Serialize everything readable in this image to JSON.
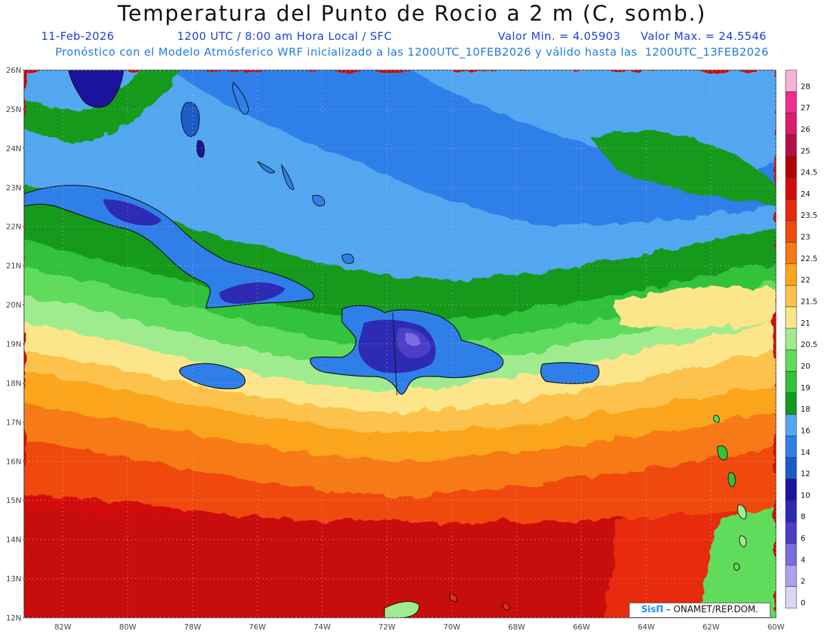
{
  "header": {
    "title": "Temperatura del Punto de Rocio a 2 m (C, somb.)",
    "date": "11-Feb-2026",
    "time_info": "1200 UTC / 8:00 am Hora Local / SFC",
    "min_label": "Valor Min. = 4.05903",
    "max_label": "Valor Max. = 24.5546",
    "model_info": "Pronóstico con el Modelo Atmósferico WRF inicializado a las 1200UTC_10FEB2026 y válido hasta las  1200UTC_13FEB2026"
  },
  "map": {
    "lat_labels": [
      "26N",
      "25N",
      "24N",
      "23N",
      "22N",
      "21N",
      "20N",
      "19N",
      "18N",
      "17N",
      "16N",
      "15N",
      "14N",
      "13N",
      "12N"
    ],
    "lon_labels": [
      "82W",
      "80W",
      "78W",
      "76W",
      "74W",
      "72W",
      "70W",
      "68W",
      "66W",
      "64W",
      "62W",
      "60W"
    ],
    "lat_range": [
      12,
      26
    ],
    "lon_range": [
      -83.2,
      -60
    ],
    "grid": "dotted"
  },
  "colorbar": {
    "levels": [
      {
        "label": "28",
        "color": "#f7b2d6"
      },
      {
        "label": "27",
        "color": "#ee2e8f"
      },
      {
        "label": "26",
        "color": "#dc1c6e"
      },
      {
        "label": "25",
        "color": "#b0104a"
      },
      {
        "label": "24.5",
        "color": "#b30000"
      },
      {
        "label": "24",
        "color": "#d40b0b"
      },
      {
        "label": "23.5",
        "color": "#e8290c"
      },
      {
        "label": "23",
        "color": "#f04a0e"
      },
      {
        "label": "22.5",
        "color": "#f77a12"
      },
      {
        "label": "22",
        "color": "#fba51c"
      },
      {
        "label": "21.5",
        "color": "#fcc24c"
      },
      {
        "label": "21",
        "color": "#fde68a"
      },
      {
        "label": "20.5",
        "color": "#9fec8f"
      },
      {
        "label": "20",
        "color": "#5edc5b"
      },
      {
        "label": "19",
        "color": "#32c23a"
      },
      {
        "label": "18",
        "color": "#129a1f"
      },
      {
        "label": "16",
        "color": "#53a7f1"
      },
      {
        "label": "14",
        "color": "#2f7fe8"
      },
      {
        "label": "12",
        "color": "#1c5cc8"
      },
      {
        "label": "10",
        "color": "#1c139e"
      },
      {
        "label": "8",
        "color": "#2d2ab3"
      },
      {
        "label": "6",
        "color": "#4b3ec8"
      },
      {
        "label": "4",
        "color": "#7a6be0"
      },
      {
        "label": "2",
        "color": "#ab9ff0"
      },
      {
        "label": "0",
        "color": "#d8d6f4"
      }
    ]
  },
  "credit": {
    "sis": "SisΠ",
    "text": "– ONAMET/REP.DOM."
  }
}
